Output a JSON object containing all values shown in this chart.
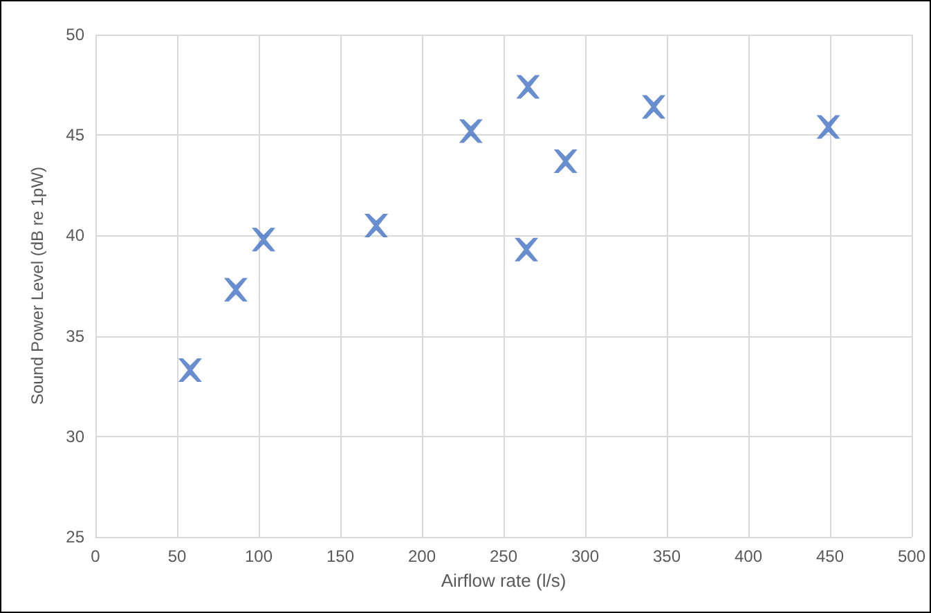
{
  "chart_data": {
    "type": "scatter",
    "xlabel": "Airflow rate (l/s)",
    "ylabel": "Sound Power Level (dB re 1pW)",
    "x": [
      58,
      86,
      103,
      172,
      230,
      265,
      264,
      288,
      342,
      449
    ],
    "values": [
      33.3,
      37.3,
      39.8,
      40.5,
      45.2,
      47.4,
      39.3,
      43.7,
      46.4,
      45.4
    ],
    "color": "#4472c4",
    "marker": "cross",
    "xlim": [
      0,
      500
    ],
    "xticks": [
      0,
      50,
      100,
      150,
      200,
      250,
      300,
      350,
      400,
      450,
      500
    ],
    "ylim": [
      25,
      50
    ],
    "yticks": [
      25,
      30,
      35,
      40,
      45,
      50
    ],
    "grid": true
  }
}
